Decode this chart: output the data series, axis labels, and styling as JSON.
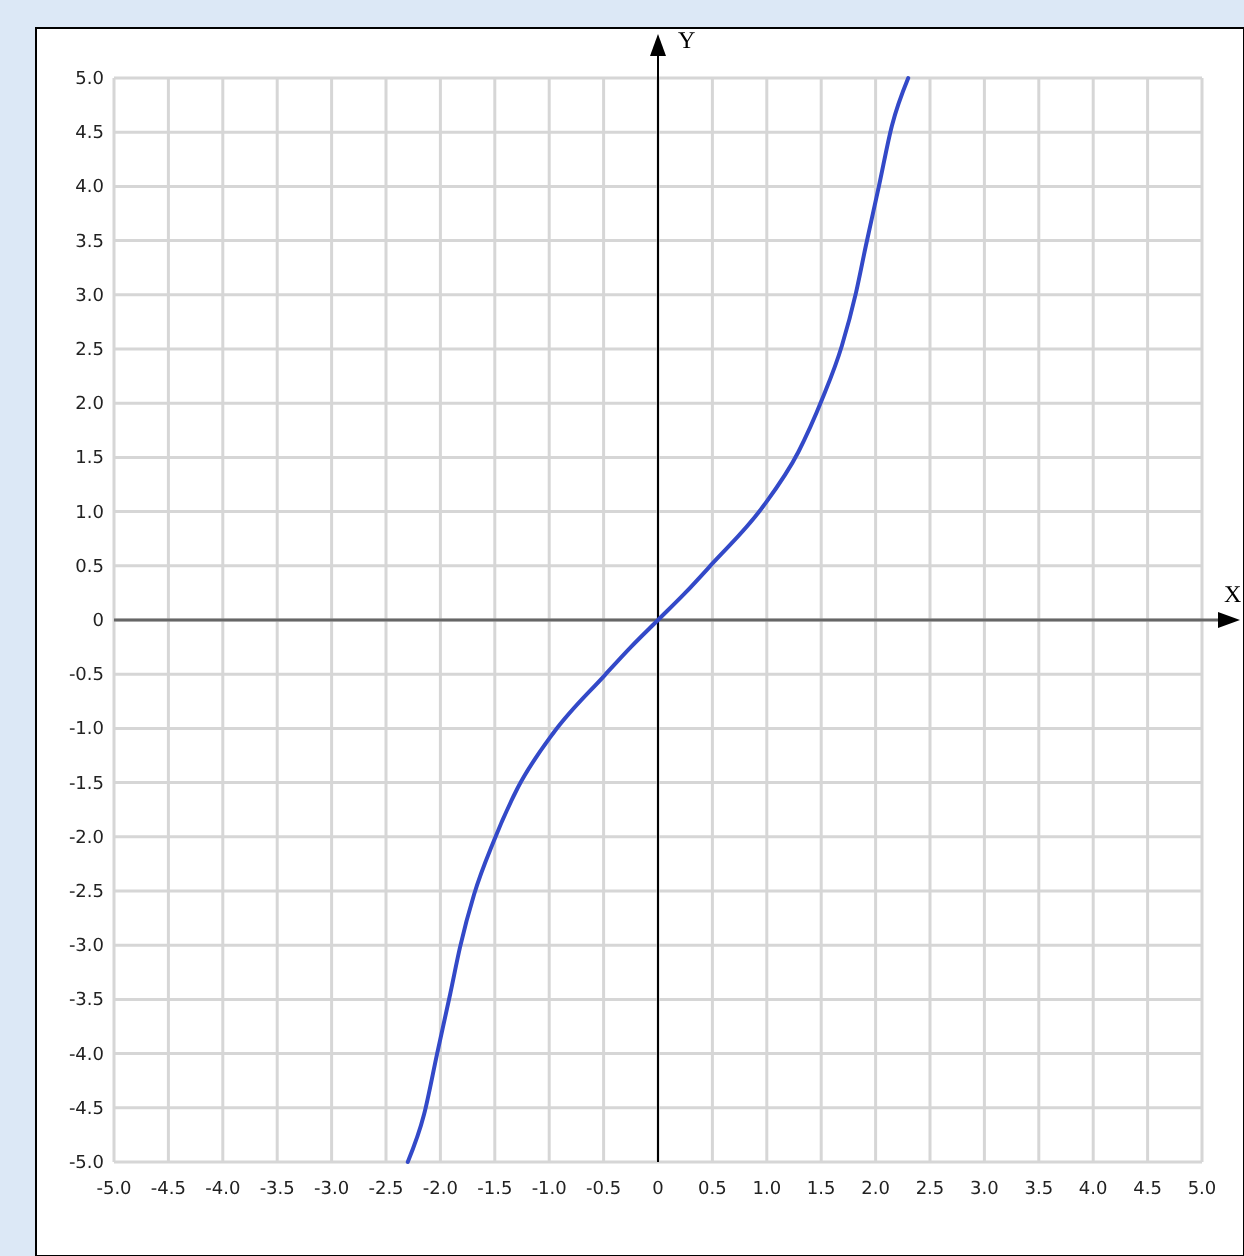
{
  "chart_data": {
    "type": "line",
    "xlabel": "X",
    "ylabel": "Y",
    "xlim": [
      -5,
      5
    ],
    "ylim": [
      -5,
      5
    ],
    "xticks": [
      {
        "value": -5,
        "label": "-5.0"
      },
      {
        "value": -4.5,
        "label": "-4.5"
      },
      {
        "value": -4,
        "label": "-4.0"
      },
      {
        "value": -3.5,
        "label": "-3.5"
      },
      {
        "value": -3,
        "label": "-3.0"
      },
      {
        "value": -2.5,
        "label": "-2.5"
      },
      {
        "value": -2,
        "label": "-2.0"
      },
      {
        "value": -1.5,
        "label": "-1.5"
      },
      {
        "value": -1,
        "label": "-1.0"
      },
      {
        "value": -0.5,
        "label": "-0.5"
      },
      0,
      {
        "value": 0.5,
        "label": "0.5"
      },
      {
        "value": 1,
        "label": "1.0"
      },
      {
        "value": 1.5,
        "label": "1.5"
      },
      {
        "value": 2,
        "label": "2.0"
      },
      {
        "value": 2.5,
        "label": "2.5"
      },
      {
        "value": 3,
        "label": "3.0"
      },
      {
        "value": 3.5,
        "label": "3.5"
      },
      {
        "value": 4,
        "label": "4.0"
      },
      {
        "value": 4.5,
        "label": "4.5"
      },
      {
        "value": 5,
        "label": "5.0"
      }
    ],
    "yticks": [
      {
        "value": -5,
        "label": "-5.0"
      },
      {
        "value": -4.5,
        "label": "-4.5"
      },
      {
        "value": -4,
        "label": "-4.0"
      },
      {
        "value": -3.5,
        "label": "-3.5"
      },
      {
        "value": -3,
        "label": "-3.0"
      },
      {
        "value": -2.5,
        "label": "-2.5"
      },
      {
        "value": -2,
        "label": "-2.0"
      },
      {
        "value": -1.5,
        "label": "-1.5"
      },
      {
        "value": -1,
        "label": "-1.0"
      },
      {
        "value": -0.5,
        "label": "-0.5"
      },
      0,
      {
        "value": 0.5,
        "label": "0.5"
      },
      {
        "value": 1,
        "label": "1.0"
      },
      {
        "value": 1.5,
        "label": "1.5"
      },
      {
        "value": 2,
        "label": "2.0"
      },
      {
        "value": 2.5,
        "label": "2.5"
      },
      {
        "value": 3,
        "label": "3.0"
      },
      {
        "value": 3.5,
        "label": "3.5"
      },
      {
        "value": 4,
        "label": "4.0"
      },
      {
        "value": 4.5,
        "label": "4.5"
      },
      {
        "value": 5,
        "label": "5.0"
      }
    ],
    "grid": true,
    "marker": "none",
    "line_style": "solid",
    "series": [
      {
        "color": "#3349c8",
        "x": [
          -2.3,
          -2.15,
          -2.03,
          -1.91,
          -1.82,
          -1.69,
          -1.51,
          -1.29,
          -0.96,
          -0.49,
          -0.25,
          0,
          0.25,
          0.49,
          0.96,
          1.29,
          1.51,
          1.69,
          1.82,
          1.91,
          2.03,
          2.15,
          2.3
        ],
        "values": [
          -5,
          -4.56,
          -4,
          -3.45,
          -3.02,
          -2.53,
          -2.04,
          -1.55,
          -1.04,
          -0.51,
          -0.25,
          0,
          0.25,
          0.51,
          1.04,
          1.55,
          2.04,
          2.53,
          3.02,
          3.45,
          4,
          4.56,
          5
        ]
      }
    ]
  }
}
